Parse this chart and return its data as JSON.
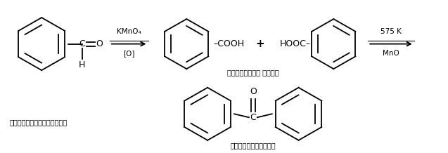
{
  "bg_color": "#ffffff",
  "fig_width": 6.37,
  "fig_height": 2.18,
  "dpi": 100,
  "kmno4_label": "KMnO₄",
  "o_label": "[O]",
  "condition2_line1": "575 K",
  "condition2_line2": "MnO",
  "benzaldehyde_label": "बेन्जैल्डिहाइड",
  "benzoic_label": "बेन्जोइक अम्ल",
  "benzophenone_label": "बेन्जोफीनोन"
}
